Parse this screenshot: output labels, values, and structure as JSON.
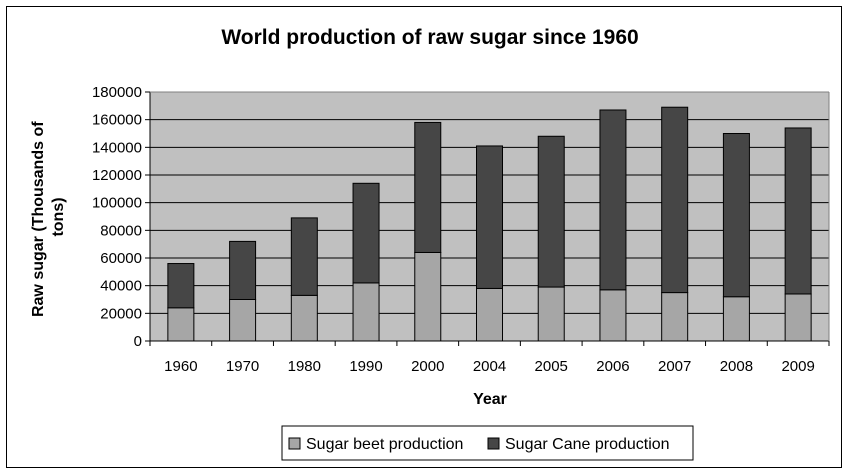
{
  "chart_data": {
    "type": "bar",
    "stacked": true,
    "title": "World production of raw sugar since 1960",
    "xlabel": "Year",
    "ylabel": "Raw sugar (Thousands of tons)",
    "ylim": [
      0,
      180000
    ],
    "yticks": [
      0,
      20000,
      40000,
      60000,
      80000,
      100000,
      120000,
      140000,
      160000,
      180000
    ],
    "categories": [
      "1960",
      "1970",
      "1980",
      "1990",
      "2000",
      "2004",
      "2005",
      "2006",
      "2007",
      "2008",
      "2009"
    ],
    "series": [
      {
        "name": "Sugar beet production",
        "color": "#a6a6a6",
        "values": [
          24000,
          30000,
          33000,
          42000,
          64000,
          38000,
          39000,
          37000,
          35000,
          32000,
          34000
        ]
      },
      {
        "name": "Sugar Cane production",
        "color": "#464646",
        "values": [
          32000,
          42000,
          56000,
          72000,
          94000,
          103000,
          109000,
          130000,
          134000,
          118000,
          120000
        ]
      }
    ],
    "grid": true,
    "plot_background": "#c0c0c0",
    "legend_position": "bottom"
  }
}
